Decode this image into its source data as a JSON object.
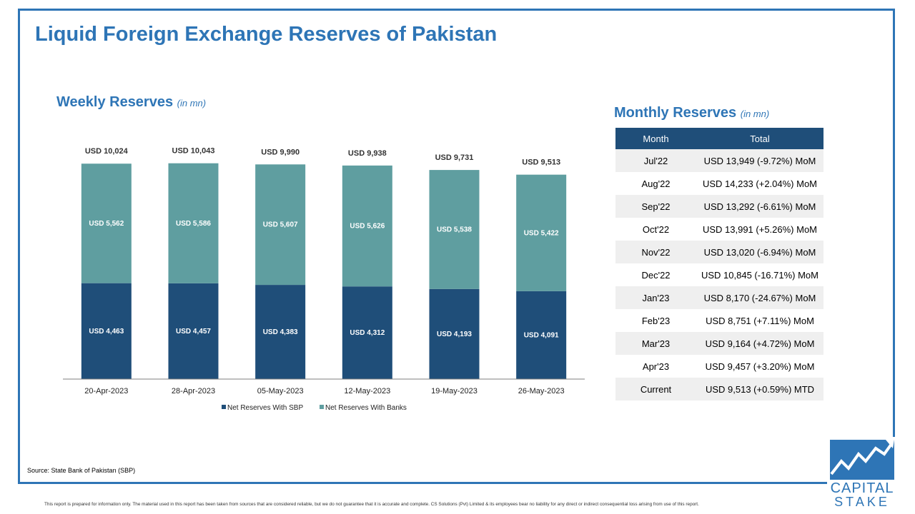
{
  "page": {
    "title": "Liquid Foreign Exchange Reserves of Pakistan",
    "source": "Source: State Bank of Pakistan (SBP)",
    "disclaimer": "This report is prepared for information only. The material used in this report has been taken from sources that are considered reliable, but we do not guarantee that it is accurate and complete. CS Solutions (Pvt) Limited & its employees bear no liability for any direct or indirect consequential loss arising from use of this report."
  },
  "weekly": {
    "title": "Weekly Reserves",
    "unit": "(in mn)"
  },
  "monthly": {
    "title": "Monthly Reserves",
    "unit": "(in mn)",
    "headers": {
      "month": "Month",
      "total": "Total"
    },
    "rows": [
      {
        "month": "Jul'22",
        "total": "USD 13,949 (-9.72%) MoM"
      },
      {
        "month": "Aug'22",
        "total": "USD 14,233 (+2.04%) MoM"
      },
      {
        "month": "Sep'22",
        "total": "USD 13,292 (-6.61%) MoM"
      },
      {
        "month": "Oct'22",
        "total": "USD 13,991 (+5.26%) MoM"
      },
      {
        "month": "Nov'22",
        "total": "USD 13,020 (-6.94%) MoM"
      },
      {
        "month": "Dec'22",
        "total": "USD 10,845 (-16.71%) MoM"
      },
      {
        "month": "Jan'23",
        "total": "USD 8,170 (-24.67%) MoM"
      },
      {
        "month": "Feb'23",
        "total": "USD 8,751 (+7.11%) MoM"
      },
      {
        "month": "Mar'23",
        "total": "USD 9,164 (+4.72%) MoM"
      },
      {
        "month": "Apr'23",
        "total": "USD 9,457 (+3.20%) MoM"
      },
      {
        "month": "Current",
        "total": "USD 9,513 (+0.59%) MTD"
      }
    ]
  },
  "logo": {
    "line1": "CAPITAL",
    "line2": "STAKE"
  },
  "chart_data": {
    "type": "bar",
    "stacked": true,
    "categories": [
      "20-Apr-2023",
      "28-Apr-2023",
      "05-May-2023",
      "12-May-2023",
      "19-May-2023",
      "26-May-2023"
    ],
    "series": [
      {
        "name": "Net Reserves With SBP",
        "values": [
          4463,
          4457,
          4383,
          4312,
          4193,
          4091
        ],
        "labels": [
          "USD 4,463",
          "USD 4,457",
          "USD 4,383",
          "USD 4,312",
          "USD 4,193",
          "USD 4,091"
        ],
        "color": "#1f4e79"
      },
      {
        "name": "Net Reserves With Banks",
        "values": [
          5562,
          5586,
          5607,
          5626,
          5538,
          5422
        ],
        "labels": [
          "USD 5,562",
          "USD 5,586",
          "USD 5,607",
          "USD 5,626",
          "USD 5,538",
          "USD 5,422"
        ],
        "color": "#5f9ea0"
      }
    ],
    "totals": [
      10024,
      10043,
      9990,
      9938,
      9731,
      9513
    ],
    "total_labels": [
      "USD 10,024",
      "USD 10,043",
      "USD 9,990",
      "USD 9,938",
      "USD 9,731",
      "USD 9,513"
    ],
    "ylim": [
      0,
      11000
    ],
    "grid": false,
    "legend": "bottom"
  },
  "colors": {
    "accent": "#2e75b6",
    "dark_navy": "#1f4e79",
    "teal": "#5f9ea0"
  }
}
